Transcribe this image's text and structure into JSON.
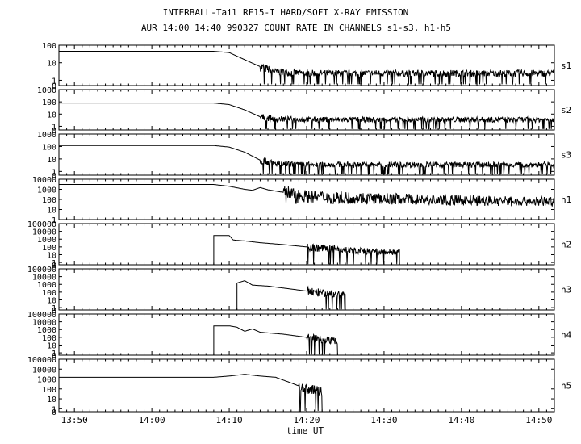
{
  "chart_data": {
    "type": "line",
    "title": "INTERBALL-Tail RF15-I HARD/SOFT X-RAY EMISSION",
    "subtitle": "AUR 14:00 14:40 990327  COUNT RATE IN CHANNELS s1-s3, h1-h5",
    "xlabel": "time UT",
    "x_ticks": [
      "13:50",
      "14:00",
      "14:10",
      "14:20",
      "14:30",
      "14:40",
      "14:50"
    ],
    "xlim": [
      "13:48",
      "14:52"
    ],
    "y_scale": "log",
    "grid": false,
    "panels": [
      {
        "name": "s1",
        "y_ticks": [
          "100",
          "10",
          "1",
          "0"
        ],
        "ylim": [
          0.5,
          100
        ],
        "points": [
          [
            "13:48",
            45
          ],
          [
            "14:08",
            45
          ],
          [
            "14:10",
            38
          ],
          [
            "14:12",
            15
          ],
          [
            "14:14",
            6
          ],
          [
            "14:16",
            3
          ],
          [
            "14:20",
            2.5
          ],
          [
            "14:30",
            2.5
          ],
          [
            "14:40",
            2.5
          ],
          [
            "14:52",
            2.5
          ]
        ],
        "noise_from": "14:14",
        "noise_to": "14:52",
        "noise_low": 0.6
      },
      {
        "name": "s2",
        "y_ticks": [
          "1000",
          "100",
          "10",
          "1",
          "0"
        ],
        "ylim": [
          0.5,
          1000
        ],
        "points": [
          [
            "13:48",
            80
          ],
          [
            "14:08",
            80
          ],
          [
            "14:10",
            60
          ],
          [
            "14:12",
            22
          ],
          [
            "14:14",
            6
          ],
          [
            "14:16",
            4
          ],
          [
            "14:20",
            3.5
          ],
          [
            "14:30",
            3.5
          ],
          [
            "14:40",
            3.5
          ],
          [
            "14:52",
            3.5
          ]
        ],
        "noise_from": "14:14",
        "noise_to": "14:52",
        "noise_low": 0.6
      },
      {
        "name": "s3",
        "y_ticks": [
          "1000",
          "100",
          "10",
          "1",
          "0"
        ],
        "ylim": [
          0.5,
          1000
        ],
        "points": [
          [
            "13:48",
            120
          ],
          [
            "14:08",
            120
          ],
          [
            "14:10",
            90
          ],
          [
            "14:12",
            35
          ],
          [
            "14:14",
            8
          ],
          [
            "14:16",
            4
          ],
          [
            "14:20",
            3.5
          ],
          [
            "14:30",
            3.5
          ],
          [
            "14:40",
            3.5
          ],
          [
            "14:52",
            3.5
          ]
        ],
        "noise_from": "14:14",
        "noise_to": "14:52",
        "noise_low": 0.6
      },
      {
        "name": "h1",
        "y_ticks": [
          "10000",
          "1000",
          "100",
          "10",
          "1"
        ],
        "ylim": [
          1,
          10000
        ],
        "points": [
          [
            "13:48",
            3000
          ],
          [
            "14:08",
            3000
          ],
          [
            "14:10",
            2000
          ],
          [
            "14:12",
            1000
          ],
          [
            "14:13",
            800
          ],
          [
            "14:14",
            1500
          ],
          [
            "14:15",
            900
          ],
          [
            "14:17",
            500
          ],
          [
            "14:20",
            200
          ],
          [
            "14:30",
            120
          ],
          [
            "14:40",
            80
          ],
          [
            "14:52",
            60
          ]
        ],
        "noise_from": "14:17",
        "noise_to": "14:52",
        "noise_low": 40
      },
      {
        "name": "h2",
        "y_ticks": [
          "100000",
          "10000",
          "1000",
          "100",
          "10",
          "1",
          "0"
        ],
        "ylim": [
          0.5,
          100000
        ],
        "start": "14:08",
        "end": "14:32",
        "points": [
          [
            "14:08",
            3000
          ],
          [
            "14:10",
            3000
          ],
          [
            "14:10:30",
            800
          ],
          [
            "14:11",
            700
          ],
          [
            "14:12",
            600
          ],
          [
            "14:14",
            350
          ],
          [
            "14:17",
            200
          ],
          [
            "14:20",
            100
          ],
          [
            "14:25",
            40
          ],
          [
            "14:28",
            25
          ],
          [
            "14:32",
            20
          ]
        ],
        "noise_from": "14:20",
        "noise_to": "14:32",
        "noise_low": 0.6
      },
      {
        "name": "h3",
        "y_ticks": [
          "100000",
          "10000",
          "1000",
          "100",
          "10",
          "1",
          "0"
        ],
        "ylim": [
          0.5,
          100000
        ],
        "start": "14:11",
        "end": "14:25",
        "points": [
          [
            "14:11",
            1500
          ],
          [
            "14:12",
            3000
          ],
          [
            "14:13",
            800
          ],
          [
            "14:15",
            600
          ],
          [
            "14:18",
            250
          ],
          [
            "14:21",
            100
          ],
          [
            "14:23",
            60
          ],
          [
            "14:25",
            40
          ]
        ],
        "noise_from": "14:20",
        "noise_to": "14:25",
        "noise_low": 0.6
      },
      {
        "name": "h4",
        "y_ticks": [
          "100000",
          "10000",
          "1000",
          "100",
          "10",
          "1",
          "0"
        ],
        "ylim": [
          0.5,
          100000
        ],
        "start": "14:08",
        "end": "14:24",
        "points": [
          [
            "14:08",
            3000
          ],
          [
            "14:10",
            3000
          ],
          [
            "14:11",
            2000
          ],
          [
            "14:12",
            600
          ],
          [
            "14:13",
            1200
          ],
          [
            "14:14",
            450
          ],
          [
            "14:17",
            250
          ],
          [
            "14:20",
            100
          ],
          [
            "14:22",
            60
          ],
          [
            "14:24",
            30
          ]
        ],
        "noise_from": "14:20",
        "noise_to": "14:24",
        "noise_low": 0.6
      },
      {
        "name": "h5",
        "y_ticks": [
          "100000",
          "10000",
          "1000",
          "100",
          "10",
          "1",
          "0"
        ],
        "ylim": [
          0.5,
          100000
        ],
        "start": "13:48",
        "end": "14:22",
        "points": [
          [
            "13:48",
            1500
          ],
          [
            "14:08",
            1500
          ],
          [
            "14:10",
            2000
          ],
          [
            "14:12",
            3000
          ],
          [
            "14:14",
            2000
          ],
          [
            "14:16",
            1500
          ],
          [
            "14:18",
            400
          ],
          [
            "14:20",
            100
          ],
          [
            "14:22",
            60
          ]
        ],
        "noise_from": "14:19",
        "noise_to": "14:22",
        "noise_low": 0.6
      }
    ]
  }
}
